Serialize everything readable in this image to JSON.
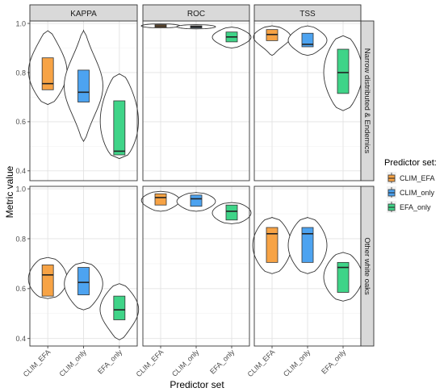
{
  "chart_data": {
    "type": "violin",
    "title": "",
    "xlabel": "Predictor set",
    "ylabel": "Metric value",
    "categories": [
      "CLIM_EFA",
      "CLIM_only",
      "EFA_only"
    ],
    "facet_columns": [
      "KAPPA",
      "ROC",
      "TSS"
    ],
    "facet_rows": [
      "Narrow distributed & Endemics",
      "Other white oaks"
    ],
    "row_ylims": [
      [
        0.36,
        1.01
      ],
      [
        0.37,
        1.01
      ]
    ],
    "row_yticks": [
      [
        0.4,
        0.6,
        0.8,
        1.0
      ],
      [
        0.4,
        0.6,
        0.8,
        1.0
      ]
    ],
    "row_yticklabels": [
      [
        "0.4",
        "0.6",
        "0.8",
        "1.0"
      ],
      [
        "0.4",
        "0.6",
        "0.8",
        "1.0"
      ]
    ],
    "grid": true,
    "legend": {
      "title": "Predictor set:",
      "position": "right",
      "entries": [
        "CLIM_EFA",
        "CLIM_only",
        "EFA_only"
      ],
      "colors": [
        "#F7A345",
        "#4DA3F0",
        "#3FD488"
      ]
    },
    "panels": [
      {
        "row": 0,
        "col": 0,
        "groups": [
          {
            "category": "CLIM_EFA",
            "min": 0.67,
            "q1": 0.73,
            "median": 0.755,
            "q3": 0.86,
            "max": 0.97
          },
          {
            "category": "CLIM_only",
            "min": 0.52,
            "q1": 0.68,
            "median": 0.72,
            "q3": 0.81,
            "max": 0.97
          },
          {
            "category": "EFA_only",
            "min": 0.45,
            "q1": 0.465,
            "median": 0.48,
            "q3": 0.685,
            "max": 0.795
          }
        ]
      },
      {
        "row": 0,
        "col": 1,
        "groups": [
          {
            "category": "CLIM_EFA",
            "min": 0.982,
            "q1": 0.985,
            "median": 0.99,
            "q3": 0.995,
            "max": 0.998
          },
          {
            "category": "CLIM_only",
            "min": 0.978,
            "q1": 0.982,
            "median": 0.986,
            "q3": 0.99,
            "max": 0.995
          },
          {
            "category": "EFA_only",
            "min": 0.9,
            "q1": 0.925,
            "median": 0.945,
            "q3": 0.965,
            "max": 0.985
          }
        ]
      },
      {
        "row": 0,
        "col": 2,
        "groups": [
          {
            "category": "CLIM_EFA",
            "min": 0.87,
            "q1": 0.93,
            "median": 0.955,
            "q3": 0.975,
            "max": 0.99
          },
          {
            "category": "CLIM_only",
            "min": 0.87,
            "q1": 0.905,
            "median": 0.915,
            "q3": 0.96,
            "max": 0.99
          },
          {
            "category": "EFA_only",
            "min": 0.645,
            "q1": 0.715,
            "median": 0.8,
            "q3": 0.895,
            "max": 0.95
          }
        ]
      },
      {
        "row": 1,
        "col": 0,
        "groups": [
          {
            "category": "CLIM_EFA",
            "min": 0.56,
            "q1": 0.57,
            "median": 0.655,
            "q3": 0.695,
            "max": 0.725
          },
          {
            "category": "CLIM_only",
            "min": 0.515,
            "q1": 0.575,
            "median": 0.625,
            "q3": 0.685,
            "max": 0.705
          },
          {
            "category": "EFA_only",
            "min": 0.395,
            "q1": 0.475,
            "median": 0.515,
            "q3": 0.57,
            "max": 0.62
          }
        ]
      },
      {
        "row": 1,
        "col": 1,
        "groups": [
          {
            "category": "CLIM_EFA",
            "min": 0.91,
            "q1": 0.935,
            "median": 0.965,
            "q3": 0.98,
            "max": 0.99
          },
          {
            "category": "CLIM_only",
            "min": 0.91,
            "q1": 0.93,
            "median": 0.96,
            "q3": 0.975,
            "max": 0.985
          },
          {
            "category": "EFA_only",
            "min": 0.86,
            "q1": 0.875,
            "median": 0.91,
            "q3": 0.935,
            "max": 0.945
          }
        ]
      },
      {
        "row": 1,
        "col": 2,
        "groups": [
          {
            "category": "CLIM_EFA",
            "min": 0.66,
            "q1": 0.705,
            "median": 0.82,
            "q3": 0.845,
            "max": 0.885
          },
          {
            "category": "CLIM_only",
            "min": 0.66,
            "q1": 0.705,
            "median": 0.82,
            "q3": 0.845,
            "max": 0.885
          },
          {
            "category": "EFA_only",
            "min": 0.55,
            "q1": 0.585,
            "median": 0.685,
            "q3": 0.705,
            "max": 0.745
          }
        ]
      }
    ]
  }
}
